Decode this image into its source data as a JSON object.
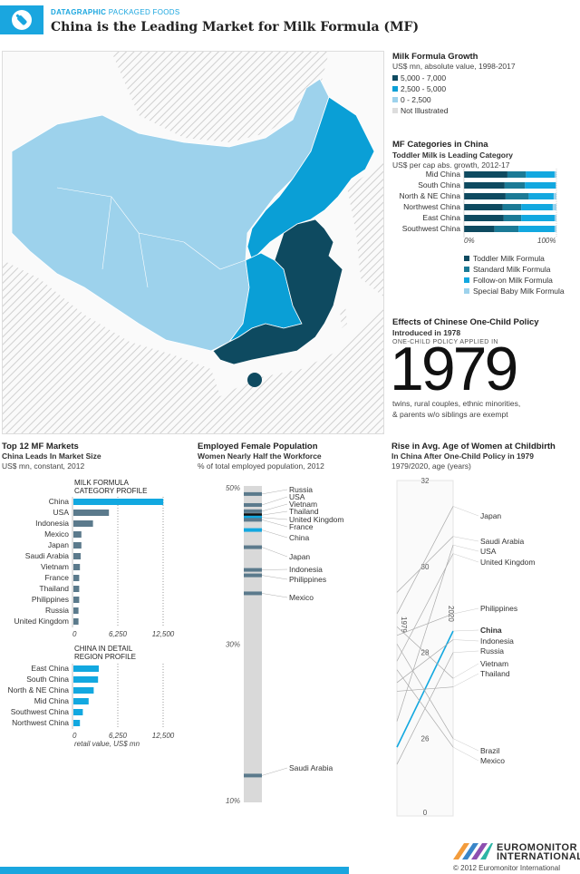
{
  "header": {
    "tag_bold": "DATAGRAPHIC",
    "tag_light": "PACKAGED FOODS",
    "title": "China is the Leading Market for Milk Formula (MF)",
    "icon": "bottle-icon"
  },
  "colors": {
    "dark": "#0e4a60",
    "mid": "#0a9fd6",
    "light": "#9dd2ec",
    "cyan": "#12a8e0",
    "gray_bar": "#5b7a8c",
    "header_bg": "#1aa6df"
  },
  "map_legend": {
    "title": "Milk Formula Growth",
    "subtitle": "US$ mn, absolute value, 1998-2017",
    "items": [
      {
        "label": "5,000 - 7,000",
        "color": "#0e4a60"
      },
      {
        "label": "2,500 - 5,000",
        "color": "#0a9fd6"
      },
      {
        "label": "0 - 2,500",
        "color": "#9dd2ec"
      },
      {
        "label": "Not Illustrated",
        "color": "#dddddd"
      }
    ]
  },
  "categories_panel": {
    "title": "MF Categories in China",
    "subtitle": "Toddler Milk is Leading Category",
    "note": "US$ per cap abs. growth, 2012-17",
    "axis_start": "0%",
    "axis_end": "100%",
    "legend": [
      "Toddler Milk Formula",
      "Standard Milk Formula",
      "Follow-on Milk Formula",
      "Special Baby Milk Formula"
    ]
  },
  "one_child": {
    "title": "Effects of Chinese One-Child Policy",
    "subtitle": "Introduced in 1978",
    "label": "ONE-CHILD POLICY APPLIED IN",
    "year": "1979",
    "note1": "twins, rural couples, ethnic minorities,",
    "note2": "& parents w/o siblings are exempt"
  },
  "top12": {
    "title": "Top 12 MF Markets",
    "subtitle": "China Leads In Market Size",
    "note": "US$ mn, constant, 2012",
    "section1_title": "MILK FORMULA",
    "section1_sub": "CATEGORY PROFILE",
    "section2_title": "CHINA IN DETAIL",
    "section2_sub": "REGION PROFILE",
    "ticks": [
      "0",
      "6,250",
      "12,500"
    ],
    "footnote": "retail value, US$ mn"
  },
  "female": {
    "title": "Employed Female Population",
    "subtitle": "Women Nearly Half the Workforce",
    "note": "% of total employed population, 2012",
    "ticks": [
      "50%",
      "30%",
      "10%"
    ]
  },
  "childbirth": {
    "title": "Rise in Avg. Age of Women at Childbirth",
    "subtitle": "In China After One-Child Policy in 1979",
    "note": "1979/2020, age (years)",
    "ticks": [
      "32",
      "30",
      "28",
      "26",
      "0"
    ],
    "left_year": "1979",
    "right_year": "2020"
  },
  "footer": {
    "brand1": "EUROMONITOR",
    "brand2": "INTERNATIONAL",
    "copyright": "© 2012 Euromonitor International"
  },
  "chart_data": [
    {
      "type": "bar",
      "title": "MF Categories in China",
      "stacked": true,
      "categories": [
        "Mid China",
        "South China",
        "North & NE China",
        "Northwest China",
        "East China",
        "Southwest China"
      ],
      "series": [
        {
          "name": "Toddler Milk Formula",
          "values": [
            47,
            44,
            45,
            42,
            43,
            33
          ]
        },
        {
          "name": "Standard Milk Formula",
          "values": [
            20,
            22,
            25,
            20,
            19,
            26
          ]
        },
        {
          "name": "Follow-on Milk Formula",
          "values": [
            31,
            33,
            27,
            34,
            36,
            39
          ]
        },
        {
          "name": "Special Baby Milk Formula",
          "values": [
            2,
            1,
            3,
            4,
            2,
            2
          ]
        }
      ],
      "xlim": [
        0,
        100
      ]
    },
    {
      "type": "bar",
      "title": "MILK FORMULA CATEGORY PROFILE",
      "orientation": "horizontal",
      "categories": [
        "China",
        "USA",
        "Indonesia",
        "Mexico",
        "Japan",
        "Saudi Arabia",
        "Vietnam",
        "France",
        "Thailand",
        "Philippines",
        "Russia",
        "United Kingdom"
      ],
      "values": [
        12400,
        4900,
        2700,
        1100,
        1100,
        1000,
        900,
        800,
        800,
        800,
        700,
        700
      ],
      "xlim": [
        0,
        12500
      ]
    },
    {
      "type": "bar",
      "title": "CHINA IN DETAIL REGION PROFILE",
      "orientation": "horizontal",
      "categories": [
        "East China",
        "South China",
        "North & NE China",
        "Mid China",
        "Southwest China",
        "Northwest China"
      ],
      "values": [
        3500,
        3400,
        2800,
        2100,
        1300,
        900
      ],
      "xlim": [
        0,
        12500
      ]
    },
    {
      "type": "scatter",
      "title": "Employed Female Population",
      "categories": [
        "Russia",
        "USA",
        "Vietnam",
        "Thailand",
        "United Kingdom",
        "France",
        "China",
        "Japan",
        "Indonesia",
        "Philippines",
        "Mexico",
        "Saudi Arabia"
      ],
      "values": [
        49.2,
        47.8,
        47.0,
        46.5,
        46.2,
        45.9,
        44.6,
        42.4,
        39.5,
        38.8,
        36.5,
        13.2
      ],
      "ylim": [
        10,
        50
      ]
    },
    {
      "type": "line",
      "title": "Rise in Avg. Age of Women at Childbirth",
      "x": [
        "1979",
        "2020"
      ],
      "series": [
        {
          "name": "Japan",
          "values": [
            28.9,
            31.4
          ]
        },
        {
          "name": "Saudi Arabia",
          "values": [
            29.4,
            30.7
          ]
        },
        {
          "name": "USA",
          "values": [
            26.4,
            30.5
          ]
        },
        {
          "name": "United Kingdom",
          "values": [
            27.8,
            30.3
          ]
        },
        {
          "name": "Philippines",
          "values": [
            28.4,
            28.9
          ]
        },
        {
          "name": "China",
          "values": [
            25.8,
            28.5
          ]
        },
        {
          "name": "Indonesia",
          "values": [
            27.3,
            28.3
          ]
        },
        {
          "name": "Russia",
          "values": [
            25.4,
            28.0
          ]
        },
        {
          "name": "Vietnam",
          "values": [
            28.6,
            27.4
          ]
        },
        {
          "name": "Thailand",
          "values": [
            27.1,
            27.2
          ]
        },
        {
          "name": "Brazil",
          "values": [
            28.2,
            26.0
          ]
        },
        {
          "name": "Mexico",
          "values": [
            27.6,
            25.8
          ]
        }
      ],
      "ylim": [
        24.2,
        32
      ]
    }
  ]
}
